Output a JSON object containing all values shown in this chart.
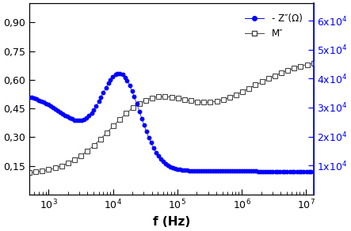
{
  "xlabel": "f (Hz)",
  "M_color": "#444444",
  "Z_color": "#0000ff",
  "legend_labels": [
    "- Z″(Ω)",
    "M″"
  ],
  "left_yticks": [
    0.15,
    0.3,
    0.45,
    0.6,
    0.75,
    0.9
  ],
  "right_yticks": [
    10000,
    20000,
    30000,
    40000,
    50000,
    60000
  ],
  "ylim_left": [
    0.0,
    1.0
  ],
  "ylim_right": [
    0,
    66000
  ],
  "xlim": [
    500,
    13000000.0
  ]
}
